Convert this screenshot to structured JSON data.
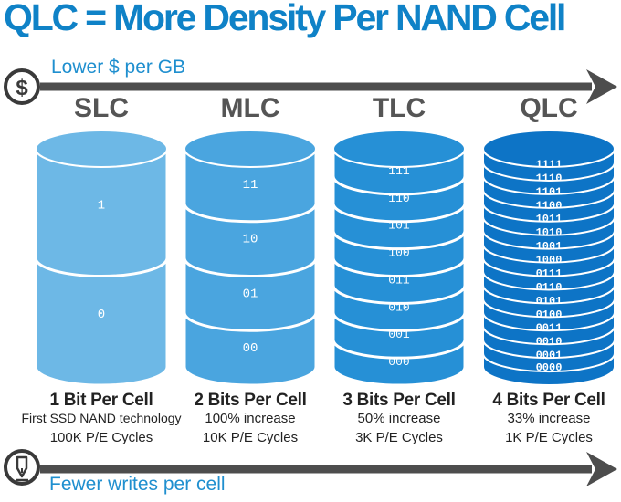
{
  "title": "QLC = More Density Per NAND Cell",
  "top_arrow": {
    "label": "Lower $ per GB",
    "icon": "dollar-icon"
  },
  "bottom_arrow": {
    "label": "Fewer writes per cell",
    "icon": "pen-icon"
  },
  "colors": {
    "title": "#0f82c7",
    "slc": "#6db8e6",
    "mlc": "#4aa5df",
    "tlc": "#2690d6",
    "qlc": "#0d74c6",
    "arrow": "#4d4d4d"
  },
  "columns": [
    {
      "name": "SLC",
      "bits_label": "1 Bit Per Cell",
      "line2": "First SSD NAND technology",
      "line3": "100K P/E Cycles",
      "levels": [
        "1",
        "0"
      ]
    },
    {
      "name": "MLC",
      "bits_label": "2 Bits Per Cell",
      "line2": "100% increase",
      "line3": "10K P/E Cycles",
      "levels": [
        "11",
        "10",
        "01",
        "00"
      ]
    },
    {
      "name": "TLC",
      "bits_label": "3 Bits Per Cell",
      "line2": "50% increase",
      "line3": "3K P/E Cycles",
      "levels": [
        "111",
        "110",
        "101",
        "100",
        "011",
        "010",
        "001",
        "000"
      ]
    },
    {
      "name": "QLC",
      "bits_label": "4 Bits Per Cell",
      "line2": "33% increase",
      "line3": "1K P/E Cycles",
      "levels": [
        "1111",
        "1110",
        "1101",
        "1100",
        "1011",
        "1010",
        "1001",
        "1000",
        "0111",
        "0110",
        "0101",
        "0100",
        "0011",
        "0010",
        "0001",
        "0000"
      ]
    }
  ]
}
